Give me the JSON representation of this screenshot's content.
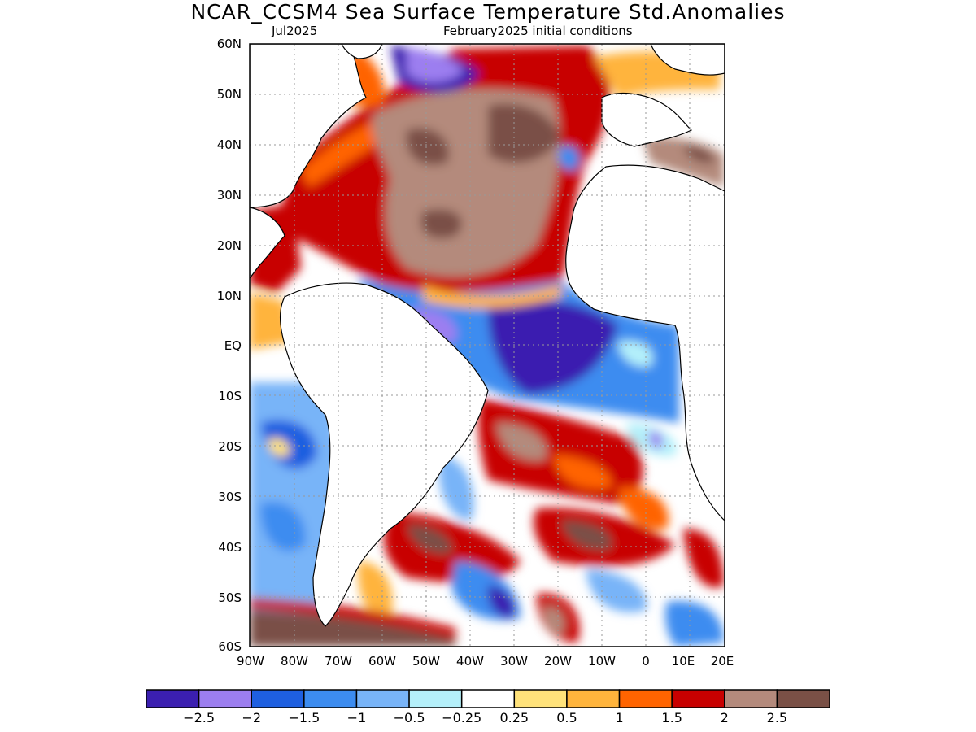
{
  "title": "NCAR_CCSM4 Sea Surface Temperature Std.Anomalies",
  "subtitle_left": "Jul2025",
  "subtitle_right": "February2025 initial conditions",
  "lat_labels": [
    "60N",
    "50N",
    "40N",
    "30N",
    "20N",
    "10N",
    "EQ",
    "10S",
    "20S",
    "30S",
    "40S",
    "50S",
    "60S"
  ],
  "lon_labels": [
    "90W",
    "80W",
    "70W",
    "60W",
    "50W",
    "40W",
    "30W",
    "20W",
    "10W",
    "0",
    "10E",
    "20E"
  ],
  "colorbar": {
    "colors": [
      "#3b1fb0",
      "#9c7ef0",
      "#1e5fe0",
      "#3c8cf0",
      "#78b4f8",
      "#b4f0fa",
      "#ffffff",
      "#ffe27a",
      "#ffb43c",
      "#ff6400",
      "#c80000",
      "#b48a7c",
      "#7a5046"
    ],
    "labels": [
      "−2.5",
      "−2",
      "−1.5",
      "−1",
      "−0.5",
      "−0.25",
      "0.25",
      "0.5",
      "1",
      "1.5",
      "2",
      "2.5"
    ]
  }
}
